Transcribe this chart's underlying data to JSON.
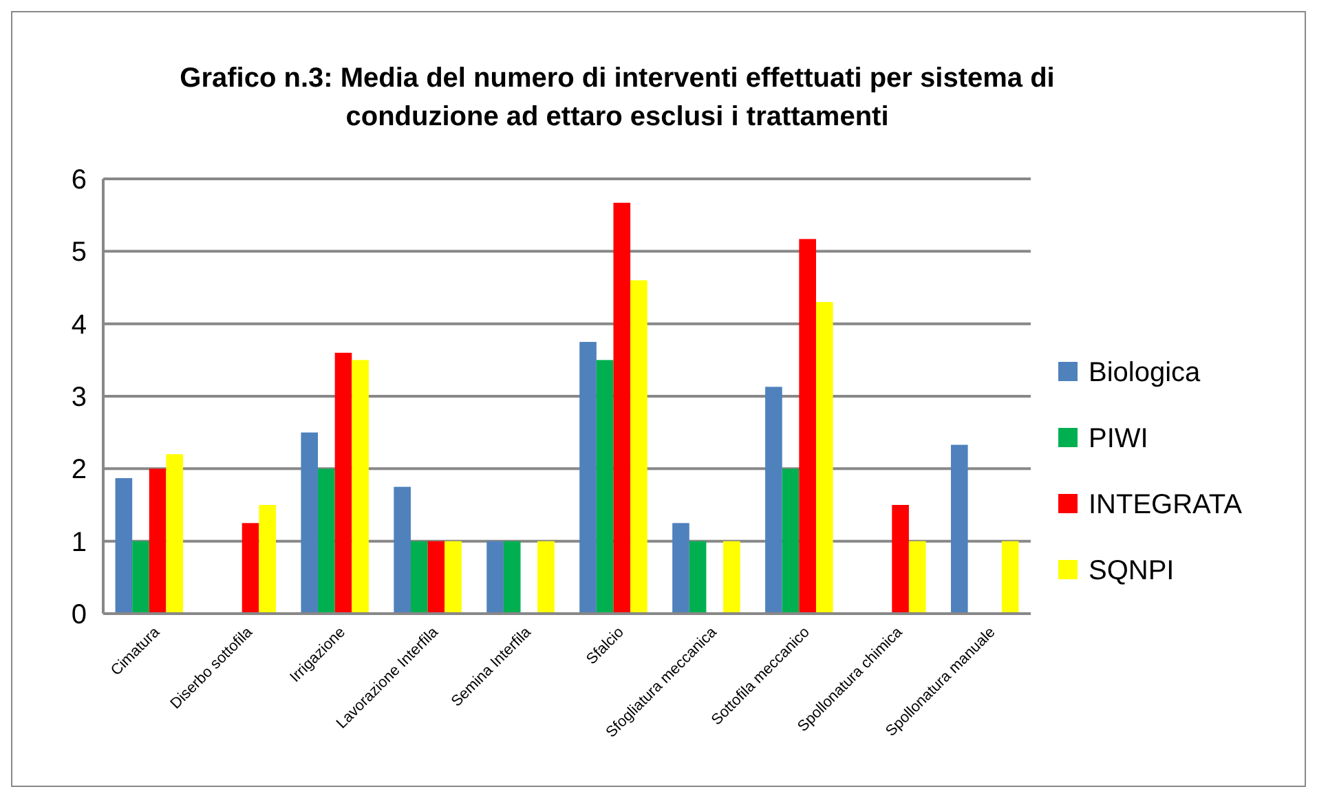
{
  "chart_data": {
    "type": "bar",
    "title": "Grafico n.3: Media del numero di interventi effettuati per sistema di conduzione ad ettaro esclusi i trattamenti",
    "categories": [
      "Cimatura",
      "Diserbo sottofila",
      "Irrigazione",
      "Lavorazione Interfila",
      "Semina Interfila",
      "Sfalcio",
      "Sfogliatura meccanica",
      "Sottofila meccanico",
      "Spollonatura chimica",
      "Spollonatura manuale"
    ],
    "series": [
      {
        "name": "Biologica",
        "color": "#4f81bd",
        "values": [
          1.87,
          null,
          2.5,
          1.75,
          1,
          3.75,
          1.25,
          3.13,
          null,
          2.33
        ]
      },
      {
        "name": "PIWI",
        "color": "#00b050",
        "values": [
          1,
          null,
          2,
          1,
          1,
          3.5,
          1,
          2,
          null,
          null
        ]
      },
      {
        "name": "INTEGRATA",
        "color": "#ff0000",
        "values": [
          2,
          1.25,
          3.6,
          1,
          null,
          5.67,
          null,
          5.17,
          1.5,
          null
        ]
      },
      {
        "name": "SQNPI",
        "color": "#ffff00",
        "values": [
          2.2,
          1.5,
          3.5,
          1,
          1,
          4.6,
          1,
          4.3,
          1,
          1
        ]
      }
    ],
    "ylim": [
      0,
      6
    ],
    "yticks": [
      0,
      1,
      2,
      3,
      4,
      5,
      6
    ],
    "grid": "y",
    "legend": "right"
  }
}
